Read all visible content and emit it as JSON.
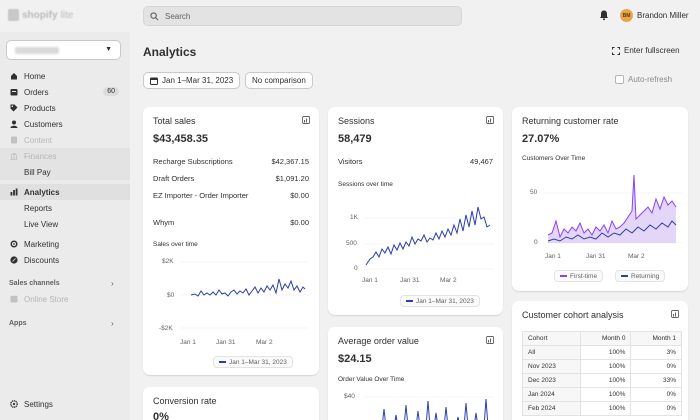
{
  "topbar": {
    "logo_text": "shopify",
    "logo_suffix": "lite",
    "search_placeholder": "Search",
    "user_initials": "BM",
    "user_name": "Brandon Miller"
  },
  "sidebar": {
    "items": [
      {
        "label": "Home"
      },
      {
        "label": "Orders",
        "badge": "60"
      },
      {
        "label": "Products"
      },
      {
        "label": "Customers"
      },
      {
        "label": "Content"
      },
      {
        "label": "Finances"
      },
      {
        "label": "Bill Pay"
      },
      {
        "label": "Analytics"
      },
      {
        "label": "Reports"
      },
      {
        "label": "Live View"
      },
      {
        "label": "Marketing"
      },
      {
        "label": "Discounts"
      }
    ],
    "sales_channels_label": "Sales channels",
    "online_store_label": "Online Store",
    "apps_label": "Apps",
    "settings_label": "Settings"
  },
  "header": {
    "title": "Analytics",
    "fullscreen_label": "Enter fullscreen",
    "date_range": "Jan 1–Mar 31, 2023",
    "comparison": "No comparison",
    "autorefresh_label": "Auto-refresh"
  },
  "total_sales": {
    "title": "Total sales",
    "value": "$43,458.35",
    "rows": [
      {
        "label": "Recharge Subscriptions",
        "value": "$42,367.15"
      },
      {
        "label": "Draft Orders",
        "value": "$1,091.20"
      },
      {
        "label": "EZ Importer - Order Importer",
        "value": "$0.00"
      },
      {
        "label": "Whym",
        "value": "$0.00"
      }
    ],
    "chart_label": "Sales over time",
    "y_ticks": [
      "$2K",
      "$0",
      "-$2K"
    ],
    "x_ticks": [
      "Jan 1",
      "Jan 31",
      "Mar 2"
    ],
    "legend": "Jan 1–Mar 31, 2023"
  },
  "sessions": {
    "title": "Sessions",
    "value": "58,479",
    "row_label": "Visitors",
    "row_value": "49,467",
    "chart_label": "Sessions over time",
    "y_ticks": [
      "1K",
      "500",
      "0"
    ],
    "x_ticks": [
      "Jan 1",
      "Jan 31",
      "Mar 2"
    ],
    "legend": "Jan 1–Mar 31, 2023"
  },
  "returning": {
    "title": "Returning customer rate",
    "value": "27.07%",
    "chart_label": "Customers Over Time",
    "y_ticks": [
      "50",
      "0"
    ],
    "x_ticks": [
      "Jan 1",
      "Jan 31",
      "Mar 2"
    ],
    "legend_first": "First-time",
    "legend_returning": "Returning"
  },
  "aov": {
    "title": "Average order value",
    "value": "$24.15",
    "chart_label": "Order Value Over Time",
    "y_tick": "$40"
  },
  "conversion": {
    "title": "Conversion rate",
    "value": "0%"
  },
  "cohort": {
    "title": "Customer cohort analysis",
    "headers": [
      "Cohort",
      "Month 0",
      "Month 1"
    ],
    "rows": [
      [
        "All",
        "100%",
        "3%"
      ],
      [
        "Nov 2023",
        "100%",
        "0%"
      ],
      [
        "Dec 2023",
        "100%",
        "33%"
      ],
      [
        "Jan 2024",
        "100%",
        "0%"
      ],
      [
        "Feb 2024",
        "100%",
        "0%"
      ]
    ]
  },
  "colors": {
    "accent": "#2c3ea8",
    "purple": "#8a3ffc",
    "background": "#f1f1f1"
  }
}
